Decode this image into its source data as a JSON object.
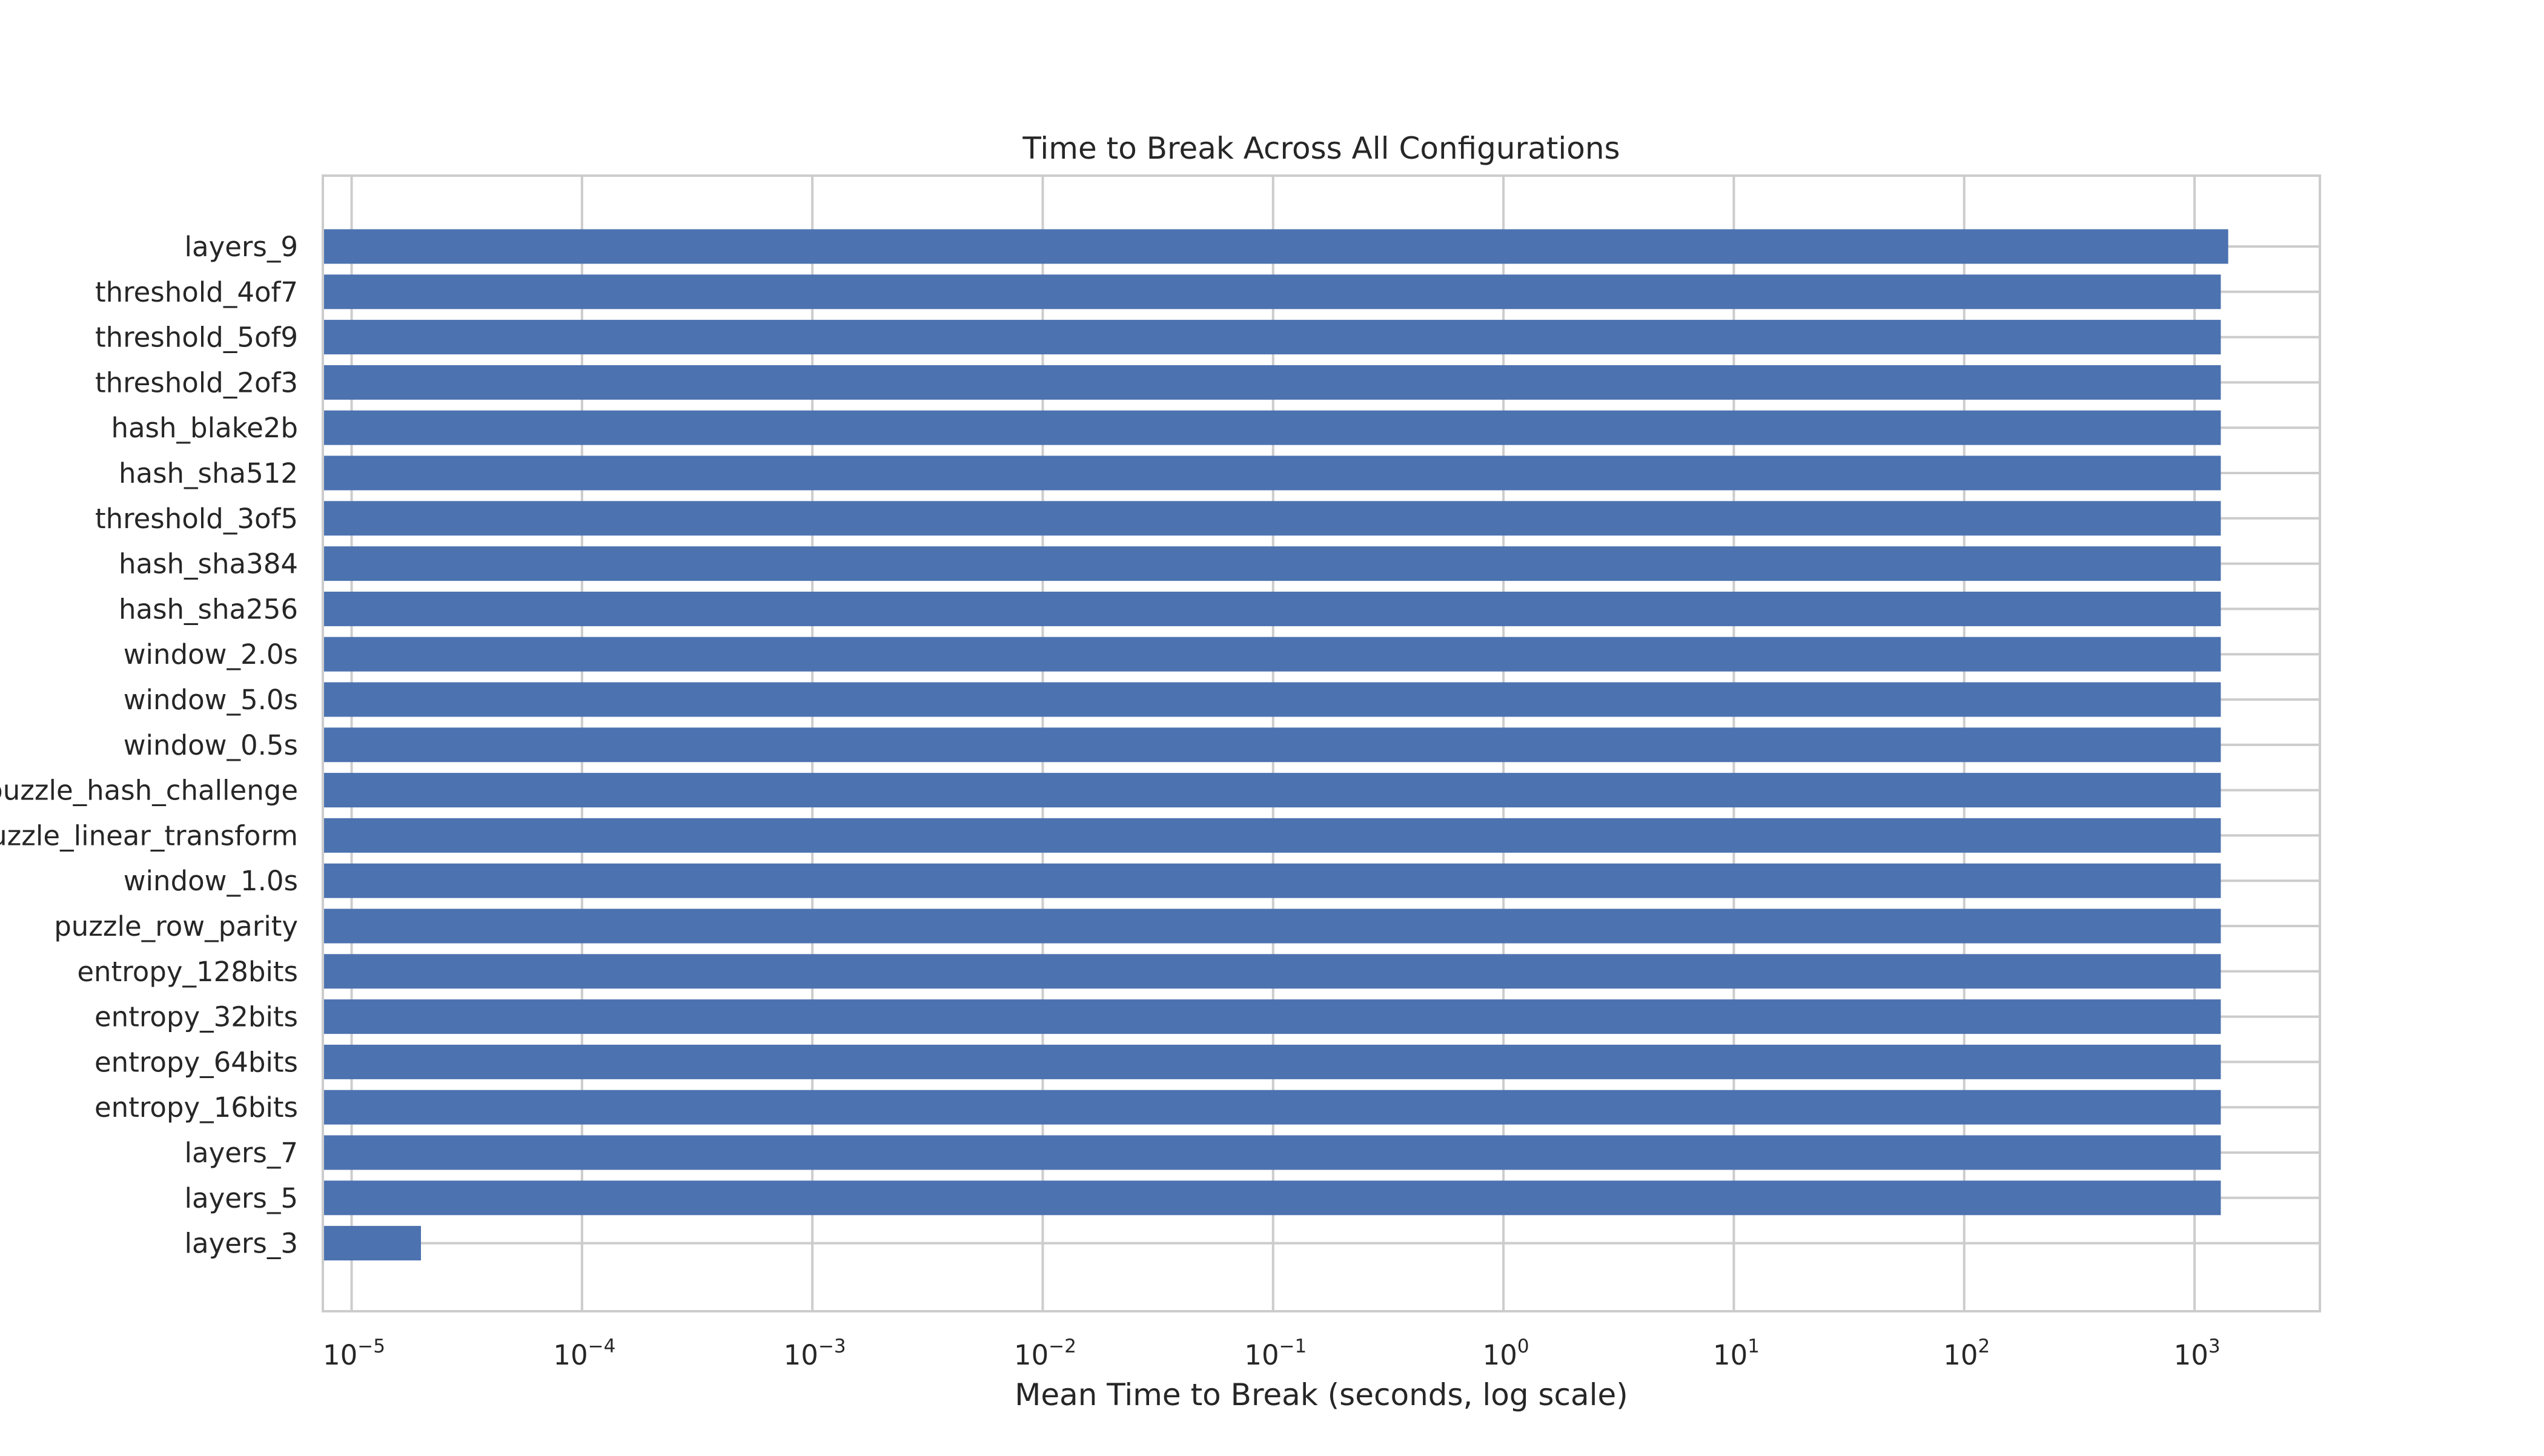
{
  "chart_data": {
    "type": "bar",
    "orientation": "horizontal",
    "title": "Time to Break Across All Configurations",
    "xlabel": "Mean Time to Break (seconds, log scale)",
    "ylabel": "",
    "x_scale": "log",
    "xlim": [
      7.5e-06,
      3500
    ],
    "x_ticks": [
      {
        "value": 1e-05,
        "base": "10",
        "exp": "−5"
      },
      {
        "value": 0.0001,
        "base": "10",
        "exp": "−4"
      },
      {
        "value": 0.001,
        "base": "10",
        "exp": "−3"
      },
      {
        "value": 0.01,
        "base": "10",
        "exp": "−2"
      },
      {
        "value": 0.1,
        "base": "10",
        "exp": "−1"
      },
      {
        "value": 1,
        "base": "10",
        "exp": "0"
      },
      {
        "value": 10,
        "base": "10",
        "exp": "1"
      },
      {
        "value": 100,
        "base": "10",
        "exp": "2"
      },
      {
        "value": 1000,
        "base": "10",
        "exp": "3"
      }
    ],
    "categories": [
      "layers_9",
      "threshold_4of7",
      "threshold_5of9",
      "threshold_2of3",
      "hash_blake2b",
      "hash_sha512",
      "threshold_3of5",
      "hash_sha384",
      "hash_sha256",
      "window_2.0s",
      "window_5.0s",
      "window_0.5s",
      "puzzle_hash_challenge",
      "puzzle_linear_transform",
      "window_1.0s",
      "puzzle_row_parity",
      "entropy_128bits",
      "entropy_32bits",
      "entropy_64bits",
      "entropy_16bits",
      "layers_7",
      "layers_5",
      "layers_3"
    ],
    "values": [
      1400,
      1300,
      1300,
      1300,
      1300,
      1300,
      1300,
      1300,
      1300,
      1300,
      1300,
      1300,
      1300,
      1300,
      1300,
      1300,
      1300,
      1300,
      1300,
      1300,
      1300,
      1300,
      2e-05
    ],
    "bar_color": "#4c72b0",
    "grid": true,
    "legend": "none"
  }
}
